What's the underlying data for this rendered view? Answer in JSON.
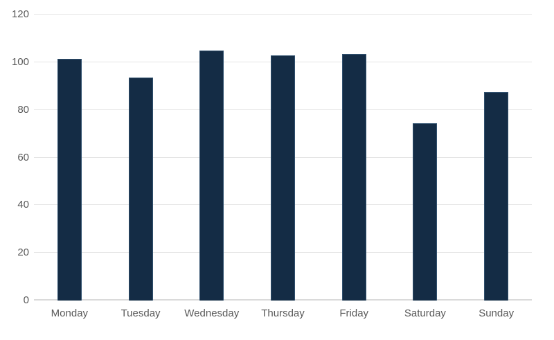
{
  "chart_data": {
    "type": "bar",
    "title": "",
    "xlabel": "",
    "ylabel": "",
    "categories": [
      "Monday",
      "Tuesday",
      "Wednesday",
      "Thursday",
      "Friday",
      "Saturday",
      "Sunday"
    ],
    "values": [
      101.5,
      93.5,
      105,
      103,
      103.5,
      74.5,
      87.5
    ],
    "ylim": [
      0,
      120
    ],
    "yticks": [
      0,
      20,
      40,
      60,
      80,
      100,
      120
    ],
    "grid": true,
    "legend": false,
    "colors": {
      "bar_fill": "#142c45",
      "bar_border": "#30506e",
      "gridline": "#e4e4e4",
      "baseline": "#dadada",
      "tick_label": "#595959",
      "background": "#ffffff"
    }
  }
}
